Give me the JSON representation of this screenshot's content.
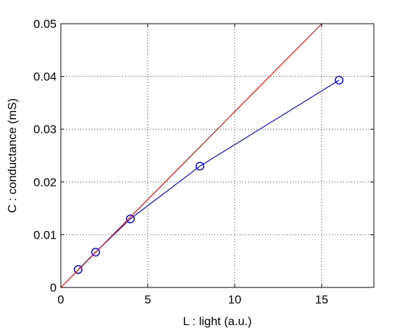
{
  "chart_data": {
    "type": "line",
    "xlabel": "L : light (a.u.)",
    "ylabel": "C : conductance (mS)",
    "xlim": [
      0,
      18
    ],
    "ylim": [
      0,
      0.05
    ],
    "xticks": [
      0,
      5,
      10,
      15
    ],
    "yticks": [
      0,
      0.01,
      0.02,
      0.03,
      0.04,
      0.05
    ],
    "xtick_labels": [
      "0",
      "5",
      "10",
      "15"
    ],
    "ytick_labels": [
      "0",
      "0.01",
      "0.02",
      "0.03",
      "0.04",
      "0.05"
    ],
    "grid": true,
    "series": [
      {
        "type": "line-with-circle-markers",
        "color": "#0000ff",
        "x": [
          1,
          2,
          4,
          8,
          16
        ],
        "y": [
          0.0034,
          0.0067,
          0.013,
          0.023,
          0.0393
        ]
      },
      {
        "type": "line",
        "color": "#ff0000",
        "x": [
          0,
          15
        ],
        "y": [
          0,
          0.05
        ]
      }
    ]
  }
}
